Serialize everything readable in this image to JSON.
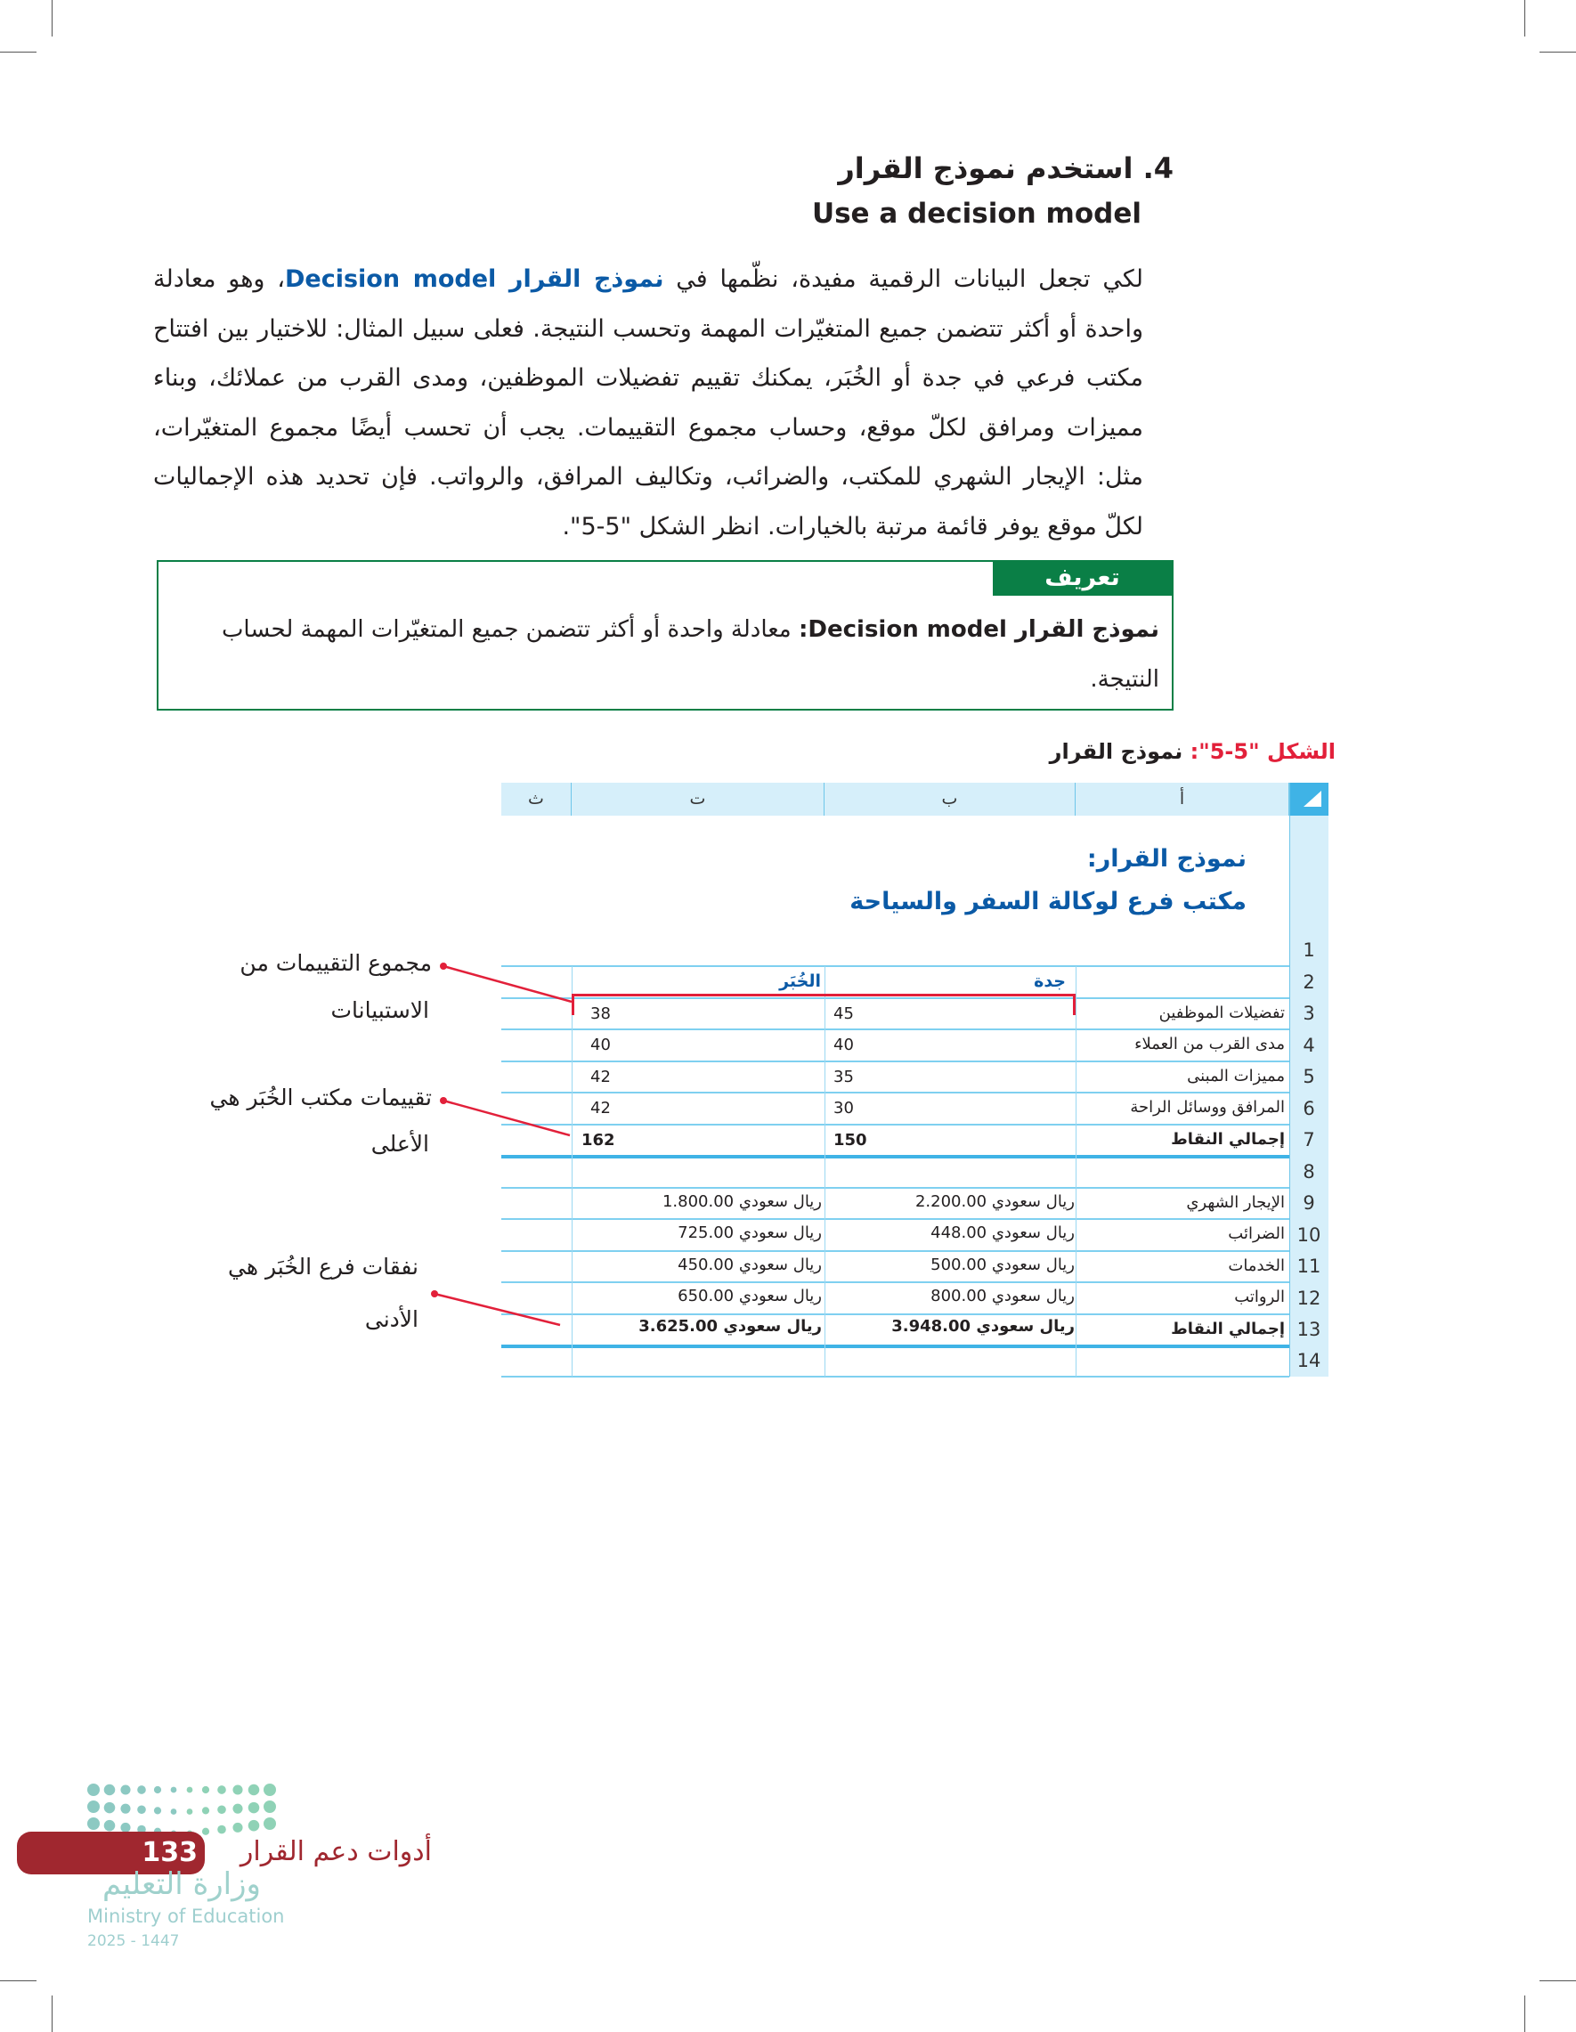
{
  "section": {
    "heading": "4. استخدم نموذج القرار",
    "subheading": "Use a decision model",
    "paragraph_before": "لكي تجعل البيانات الرقمية مفيدة، نظّمها في ",
    "paragraph_term": "نموذج القرار Decision model",
    "paragraph_after": "، وهو معادلة واحدة أو أكثر تتضمن جميع المتغيّرات المهمة وتحسب النتيجة. فعلى سبيل المثال: للاختيار بين افتتاح مكتب فرعي في جدة أو الخُبَر، يمكنك تقييم تفضيلات الموظفين، ومدى القرب من عملائك، وبناء مميزات ومرافق لكلّ موقع، وحساب مجموع التقييمات. يجب أن تحسب أيضًا مجموع المتغيّرات، مثل: الإيجار الشهري للمكتب، والضرائب، وتكاليف المرافق، والرواتب. فإن تحديد هذه الإجماليات لكلّ موقع يوفر قائمة مرتبة بالخيارات. انظر الشكل \"5-5\"."
  },
  "definition": {
    "tab": "تعريف",
    "term": "نموذج القرار Decision model:",
    "text": " معادلة واحدة أو أكثر تتضمن جميع المتغيّرات المهمة لحساب النتيجة."
  },
  "figure": {
    "label": "الشكل \"5-5\":",
    "title": " نموذج القرار"
  },
  "sheet": {
    "columns": [
      "أ",
      "ب",
      "ت",
      "ث"
    ],
    "title_line1": "نموذج القرار:",
    "title_line2": "مكتب فرع لوكالة السفر والسياحة",
    "city1": "جدة",
    "city2": "الخُبَر",
    "row_numbers": [
      "1",
      "2",
      "3",
      "4",
      "5",
      "6",
      "7",
      "8",
      "9",
      "10",
      "11",
      "12",
      "13",
      "14"
    ],
    "ratings": [
      {
        "label": "تفضيلات الموظفين",
        "jeddah": "45",
        "khobar": "38"
      },
      {
        "label": "مدى القرب من العملاء",
        "jeddah": "40",
        "khobar": "40"
      },
      {
        "label": "مميزات المبنى",
        "jeddah": "35",
        "khobar": "42"
      },
      {
        "label": "المرافق ووسائل الراحة",
        "jeddah": "30",
        "khobar": "42"
      }
    ],
    "ratings_total": {
      "label": "إجمالي النقاط",
      "jeddah": "150",
      "khobar": "162"
    },
    "costs": [
      {
        "label": "الإيجار الشهري",
        "jeddah": "2.200.00 ريال سعودي",
        "khobar": "1.800.00 ريال سعودي"
      },
      {
        "label": "الضرائب",
        "jeddah": "448.00 ريال سعودي",
        "khobar": "725.00 ريال سعودي"
      },
      {
        "label": "الخدمات",
        "jeddah": "500.00 ريال سعودي",
        "khobar": "450.00 ريال سعودي"
      },
      {
        "label": "الرواتب",
        "jeddah": "800.00 ريال سعودي",
        "khobar": "650.00 ريال سعودي"
      }
    ],
    "costs_total": {
      "label": "إجمالي النقاط",
      "jeddah": "3.948.00 ريال سعودي",
      "khobar": "3.625.00 ريال سعودي"
    }
  },
  "annotations": [
    {
      "line1": "مجموع التقييمات من",
      "line2": "الاستبيانات"
    },
    {
      "line1": "تقييمات مكتب الخُبَر هي",
      "line2": "الأعلى"
    },
    {
      "line1": "نفقات فرع الخُبَر هي",
      "line2": "الأدنى"
    }
  ],
  "footer": {
    "page_number": "133",
    "chapter": "أدوات دعم القرار",
    "logo_arabic": "وزارة التعليم",
    "logo_english": "Ministry of Education",
    "logo_year": "2025 - 1447"
  },
  "colors": {
    "accent_blue": "#0b5aa6",
    "green": "#0a7f46",
    "red": "#e2203a",
    "page_red": "#a0272f",
    "sheet_header": "#d6effa"
  }
}
